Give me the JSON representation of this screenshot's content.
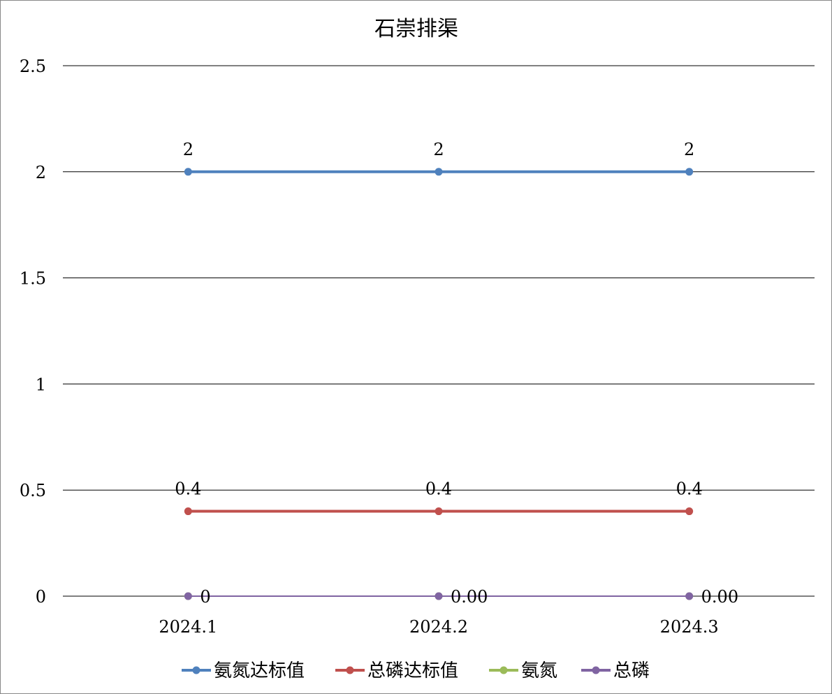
{
  "chart_data": {
    "type": "line",
    "title": "石崇排渠",
    "xlabel": "",
    "ylabel": "",
    "categories": [
      "2024.1",
      "2024.2",
      "2024.3"
    ],
    "y_tick_labels": [
      "0",
      "0.5",
      "1",
      "1.5",
      "2",
      "2.5"
    ],
    "y_ticks": [
      0,
      0.5,
      1,
      1.5,
      2,
      2.5
    ],
    "ylim": [
      0,
      2.5
    ],
    "grid": true,
    "legend_position": "bottom",
    "series": [
      {
        "name": "氨氮达标值",
        "values": [
          2,
          2,
          2
        ],
        "color": "#4f81bd",
        "labels": [
          "2",
          "2",
          "2"
        ],
        "label_pos": "above"
      },
      {
        "name": "总磷达标值",
        "values": [
          0.4,
          0.4,
          0.4
        ],
        "color": "#c0504d",
        "labels": [
          "0.4",
          "0.4",
          "0.4"
        ],
        "label_pos": "above"
      },
      {
        "name": "氨氮",
        "values": [
          0,
          0,
          0
        ],
        "color": "#9bbb59",
        "labels": [],
        "label_pos": "none"
      },
      {
        "name": "总磷",
        "values": [
          0,
          0,
          0
        ],
        "color": "#8064a2",
        "labels": [
          "0",
          "0.00",
          "0.00"
        ],
        "label_pos": "right"
      }
    ]
  }
}
